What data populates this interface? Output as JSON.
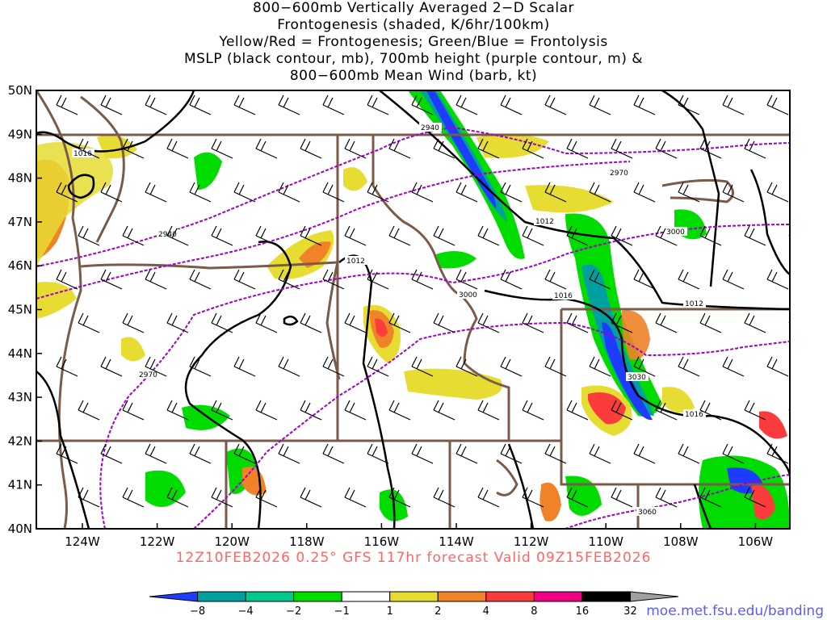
{
  "title_lines": [
    "800−600mb Vertically Averaged 2−D Scalar",
    "Frontogenesis (shaded, K/6hr/100km)",
    "Yellow/Red = Frontogenesis;  Green/Blue = Frontolysis",
    "MSLP (black contour, mb), 700mb height (purple contour, m) &",
    "800−600mb Mean Wind (barb, kt)"
  ],
  "lat_labels": [
    "50N",
    "49N",
    "48N",
    "47N",
    "46N",
    "45N",
    "44N",
    "43N",
    "42N",
    "41N",
    "40N"
  ],
  "lon_labels": [
    "124W",
    "122W",
    "120W",
    "118W",
    "116W",
    "114W",
    "112W",
    "110W",
    "108W",
    "106W"
  ],
  "mslp_labels": [
    "1016",
    "1012",
    "1012",
    "1016",
    "1012",
    "1016"
  ],
  "height_labels": [
    "2940",
    "2940",
    "2970",
    "3000",
    "3000",
    "2970",
    "3030",
    "3060"
  ],
  "valid_text": "12Z10FEB2026 0.25° GFS 117hr forecast Valid 09Z15FEB2026",
  "credit": "moe.met.fsu.edu/banding",
  "colorbar": {
    "labels": [
      "−8",
      "−4",
      "−2",
      "−1",
      "1",
      "2",
      "4",
      "8",
      "16",
      "32"
    ],
    "colors": [
      "#1e3cff",
      "#00a0a0",
      "#00c88c",
      "#00dc00",
      "#ffffff",
      "#e6dc32",
      "#f08228",
      "#fa3c3c",
      "#f00082",
      "#000000",
      "#a0a0a0"
    ]
  }
}
